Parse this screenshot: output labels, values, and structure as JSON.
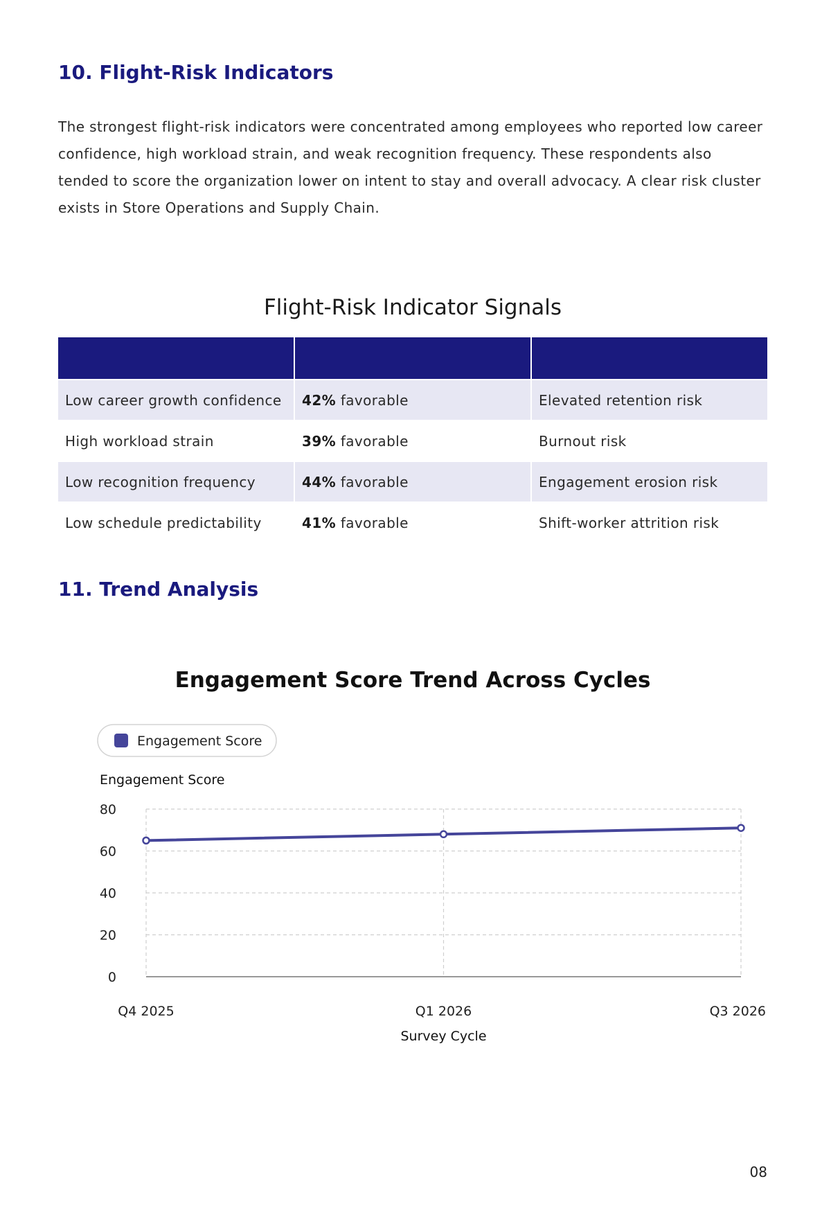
{
  "section10": {
    "heading": "10. Flight-Risk Indicators",
    "paragraph": "The strongest flight-risk indicators were concentrated among employees who reported low career confidence, high workload strain, and weak recognition frequency. These respondents also tended to score the organization lower on intent to stay and overall advocacy. A clear risk cluster exists in Store Operations and Supply Chain."
  },
  "risk_table": {
    "title": "Flight-Risk Indicator Signals",
    "headers": [
      "",
      "",
      ""
    ],
    "rows": [
      {
        "indicator": "Low career growth confidence",
        "pct": "42%",
        "favorable": " favorable",
        "risk": "Elevated retention risk"
      },
      {
        "indicator": "High workload strain",
        "pct": "39%",
        "favorable": " favorable",
        "risk": "Burnout risk"
      },
      {
        "indicator": "Low recognition frequency",
        "pct": "44%",
        "favorable": " favorable",
        "risk": "Engagement erosion risk"
      },
      {
        "indicator": "Low schedule predictability",
        "pct": "41%",
        "favorable": " favorable",
        "risk": "Shift-worker attrition risk"
      }
    ]
  },
  "section11": {
    "heading": "11. Trend Analysis"
  },
  "chart_data": {
    "type": "line",
    "title": "Engagement Score Trend Across Cycles",
    "categories": [
      "Q4 2025",
      "Q1 2026",
      "Q3 2026"
    ],
    "series": [
      {
        "name": "Engagement Score",
        "values": [
          65,
          68,
          71
        ],
        "color": "#45459a"
      }
    ],
    "xlabel": "Survey Cycle",
    "ylabel": "Engagement Score",
    "ylim": [
      0,
      80
    ],
    "yticks": [
      0,
      20,
      40,
      60,
      80
    ],
    "grid": true,
    "legend_position": "top-left"
  },
  "footer": {
    "page_number": "08"
  }
}
